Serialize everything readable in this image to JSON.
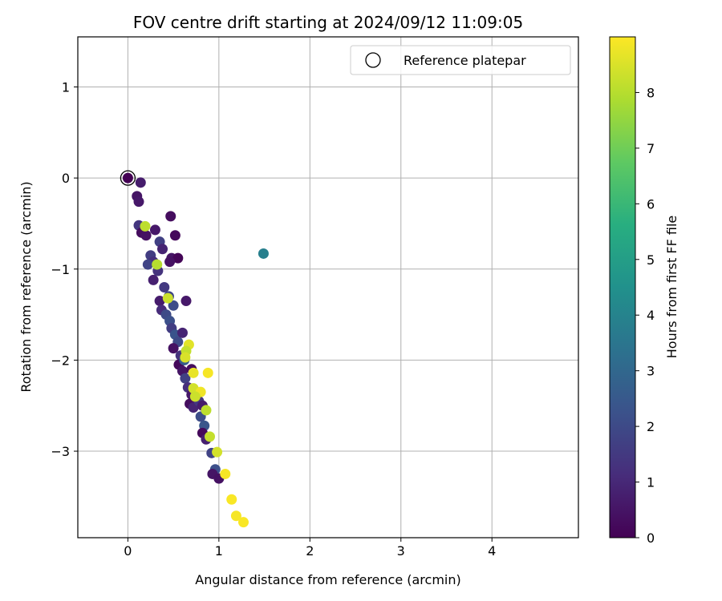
{
  "chart_data": {
    "type": "scatter",
    "title": "FOV centre drift starting at 2024/09/12 11:09:05",
    "xlabel": "Angular distance from reference (arcmin)",
    "ylabel": "Rotation from reference (arcmin)",
    "xlim": [
      -0.55,
      4.95
    ],
    "ylim": [
      -3.95,
      1.55
    ],
    "xticks": [
      0,
      1,
      2,
      3,
      4
    ],
    "yticks": [
      1,
      0,
      -1,
      -2,
      -3
    ],
    "xtick_labels": [
      "0",
      "1",
      "2",
      "3",
      "4"
    ],
    "ytick_labels": [
      "1",
      "0",
      "−1",
      "−2",
      "−3"
    ],
    "grid": true,
    "colorbar": {
      "label": "Hours from first FF file",
      "colormap": "viridis",
      "range": [
        0,
        9.0
      ],
      "ticks": [
        0,
        1,
        2,
        3,
        4,
        5,
        6,
        7,
        8
      ],
      "tick_labels": [
        "0",
        "1",
        "2",
        "3",
        "4",
        "5",
        "6",
        "7",
        "8"
      ]
    },
    "legend": {
      "placement": "top-right",
      "entries": [
        {
          "label": "Reference platepar",
          "marker": "open-circle"
        }
      ]
    },
    "reference_point": {
      "x": 0,
      "y": 0
    },
    "points": [
      {
        "x": 0.0,
        "y": 0.0,
        "h": 0.0
      },
      {
        "x": 0.1,
        "y": -0.2,
        "h": 0.5
      },
      {
        "x": 0.12,
        "y": -0.26,
        "h": 0.6
      },
      {
        "x": 0.14,
        "y": -0.05,
        "h": 0.7
      },
      {
        "x": 0.12,
        "y": -0.52,
        "h": 1.4
      },
      {
        "x": 0.15,
        "y": -0.6,
        "h": 0.3
      },
      {
        "x": 0.2,
        "y": -0.63,
        "h": 0.4
      },
      {
        "x": 0.25,
        "y": -0.85,
        "h": 1.6
      },
      {
        "x": 0.28,
        "y": -0.92,
        "h": 1.2
      },
      {
        "x": 0.22,
        "y": -0.95,
        "h": 1.8
      },
      {
        "x": 0.3,
        "y": -0.57,
        "h": 0.6
      },
      {
        "x": 0.35,
        "y": -0.7,
        "h": 1.7
      },
      {
        "x": 0.38,
        "y": -0.78,
        "h": 0.9
      },
      {
        "x": 0.33,
        "y": -1.02,
        "h": 1.3
      },
      {
        "x": 0.28,
        "y": -1.12,
        "h": 0.8
      },
      {
        "x": 0.4,
        "y": -1.2,
        "h": 1.5
      },
      {
        "x": 0.45,
        "y": -1.3,
        "h": 1.9
      },
      {
        "x": 0.35,
        "y": -1.35,
        "h": 0.7
      },
      {
        "x": 0.37,
        "y": -1.45,
        "h": 1.1
      },
      {
        "x": 0.42,
        "y": -1.5,
        "h": 2.0
      },
      {
        "x": 0.46,
        "y": -1.57,
        "h": 2.2
      },
      {
        "x": 0.5,
        "y": -1.4,
        "h": 2.1
      },
      {
        "x": 0.48,
        "y": -1.65,
        "h": 1.6
      },
      {
        "x": 0.52,
        "y": -1.72,
        "h": 2.3
      },
      {
        "x": 0.55,
        "y": -1.8,
        "h": 2.0
      },
      {
        "x": 0.5,
        "y": -1.87,
        "h": 0.4
      },
      {
        "x": 0.58,
        "y": -1.95,
        "h": 1.3
      },
      {
        "x": 0.56,
        "y": -2.05,
        "h": 0.2
      },
      {
        "x": 0.6,
        "y": -2.12,
        "h": 0.5
      },
      {
        "x": 0.63,
        "y": -2.2,
        "h": 1.7
      },
      {
        "x": 0.66,
        "y": -2.3,
        "h": 1.2
      },
      {
        "x": 0.7,
        "y": -2.38,
        "h": 0.6
      },
      {
        "x": 0.68,
        "y": -2.48,
        "h": 0.3
      },
      {
        "x": 0.72,
        "y": -2.52,
        "h": 0.9
      },
      {
        "x": 0.78,
        "y": -2.45,
        "h": 1.4
      },
      {
        "x": 0.82,
        "y": -2.5,
        "h": 0.7
      },
      {
        "x": 0.8,
        "y": -2.62,
        "h": 2.1
      },
      {
        "x": 0.84,
        "y": -2.72,
        "h": 2.4
      },
      {
        "x": 0.82,
        "y": -2.8,
        "h": 0.2
      },
      {
        "x": 0.86,
        "y": -2.87,
        "h": 0.8
      },
      {
        "x": 0.92,
        "y": -3.02,
        "h": 1.8
      },
      {
        "x": 0.96,
        "y": -3.2,
        "h": 2.2
      },
      {
        "x": 0.93,
        "y": -3.25,
        "h": 0.5
      },
      {
        "x": 1.0,
        "y": -3.3,
        "h": 0.4
      },
      {
        "x": 0.47,
        "y": -0.42,
        "h": 0.3
      },
      {
        "x": 0.52,
        "y": -0.63,
        "h": 0.2
      },
      {
        "x": 0.48,
        "y": -0.88,
        "h": 0.5
      },
      {
        "x": 0.55,
        "y": -0.88,
        "h": 0.1
      },
      {
        "x": 0.46,
        "y": -0.92,
        "h": 0.4
      },
      {
        "x": 0.64,
        "y": -1.35,
        "h": 0.6
      },
      {
        "x": 0.6,
        "y": -1.7,
        "h": 0.9
      },
      {
        "x": 0.62,
        "y": -2.0,
        "h": 2.6
      },
      {
        "x": 0.7,
        "y": -2.1,
        "h": 0.3
      },
      {
        "x": 1.49,
        "y": -0.83,
        "h": 3.85
      },
      {
        "x": 0.19,
        "y": -0.53,
        "h": 8.1
      },
      {
        "x": 0.32,
        "y": -0.95,
        "h": 8.0
      },
      {
        "x": 0.44,
        "y": -1.32,
        "h": 8.3
      },
      {
        "x": 0.67,
        "y": -1.83,
        "h": 8.6
      },
      {
        "x": 0.64,
        "y": -1.9,
        "h": 8.2
      },
      {
        "x": 0.63,
        "y": -1.97,
        "h": 8.5
      },
      {
        "x": 0.72,
        "y": -2.14,
        "h": 8.7
      },
      {
        "x": 0.88,
        "y": -2.14,
        "h": 8.9
      },
      {
        "x": 0.72,
        "y": -2.31,
        "h": 8.4
      },
      {
        "x": 0.8,
        "y": -2.35,
        "h": 8.8
      },
      {
        "x": 0.74,
        "y": -2.4,
        "h": 8.3
      },
      {
        "x": 0.86,
        "y": -2.55,
        "h": 8.1
      },
      {
        "x": 0.9,
        "y": -2.84,
        "h": 8.2
      },
      {
        "x": 0.98,
        "y": -3.01,
        "h": 8.4
      },
      {
        "x": 1.07,
        "y": -3.25,
        "h": 8.9
      },
      {
        "x": 1.14,
        "y": -3.53,
        "h": 8.95
      },
      {
        "x": 1.19,
        "y": -3.71,
        "h": 8.9
      },
      {
        "x": 1.27,
        "y": -3.78,
        "h": 8.95
      }
    ]
  }
}
